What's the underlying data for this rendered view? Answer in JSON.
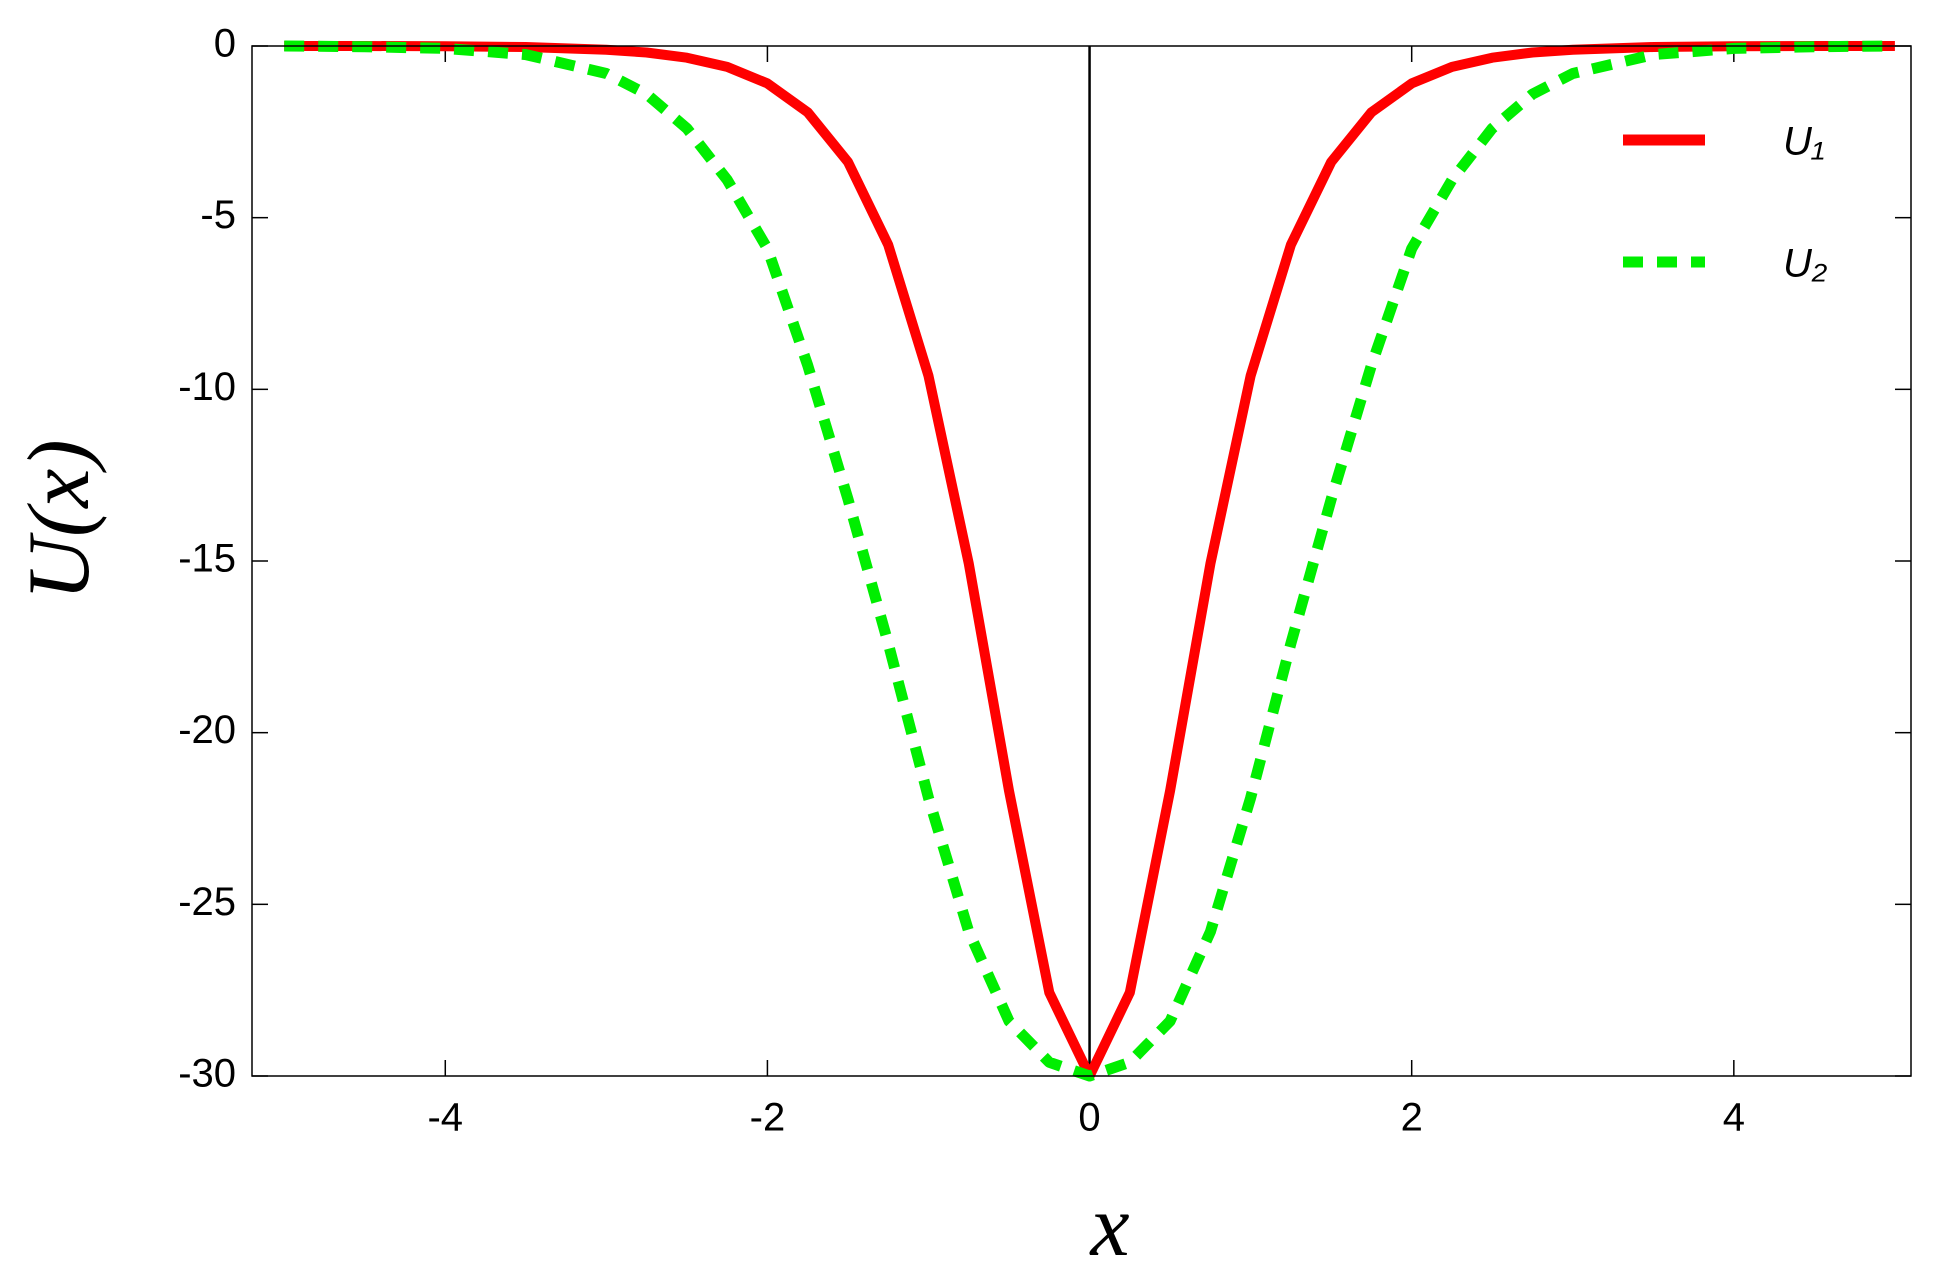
{
  "chart_data": {
    "type": "line",
    "x_label": "x",
    "y_label": "U(x)",
    "x": [
      -5,
      -4.5,
      -4,
      -3.5,
      -3,
      -2.75,
      -2.5,
      -2.25,
      -2,
      -1.75,
      -1.5,
      -1.25,
      -1,
      -0.75,
      -0.5,
      -0.25,
      0,
      0.25,
      0.5,
      0.75,
      1,
      1.25,
      1.5,
      1.75,
      2,
      2.25,
      2.5,
      2.75,
      3,
      3.5,
      4,
      4.5,
      5
    ],
    "series": [
      {
        "name": "U₁",
        "color": "#ff0000",
        "dash": false,
        "values": [
          0,
          0,
          -0.01,
          -0.03,
          -0.11,
          -0.19,
          -0.34,
          -0.61,
          -1.09,
          -1.93,
          -3.38,
          -5.79,
          -9.61,
          -15.08,
          -21.69,
          -27.57,
          -30,
          -27.57,
          -21.69,
          -15.08,
          -9.61,
          -5.79,
          -3.38,
          -1.93,
          -1.09,
          -0.61,
          -0.34,
          -0.19,
          -0.11,
          -0.03,
          -0.01,
          0,
          0
        ]
      },
      {
        "name": "U₂",
        "color": "#00ee00",
        "dash": true,
        "values": [
          0,
          -0.02,
          -0.07,
          -0.25,
          -0.8,
          -1.4,
          -2.4,
          -3.9,
          -5.9,
          -9.3,
          -13.2,
          -17.4,
          -21.9,
          -25.8,
          -28.4,
          -29.6,
          -30,
          -29.6,
          -28.4,
          -25.8,
          -21.9,
          -17.4,
          -13.2,
          -9.3,
          -5.9,
          -3.9,
          -2.4,
          -1.4,
          -0.8,
          -0.25,
          -0.07,
          -0.02,
          0
        ]
      }
    ],
    "xlim": [
      -5.2,
      5.1
    ],
    "ylim": [
      -30,
      0
    ],
    "xticks": [
      -4,
      -2,
      0,
      2,
      4
    ],
    "yticks": [
      0,
      -5,
      -10,
      -15,
      -20,
      -25,
      -30
    ],
    "legend": "upper right"
  }
}
